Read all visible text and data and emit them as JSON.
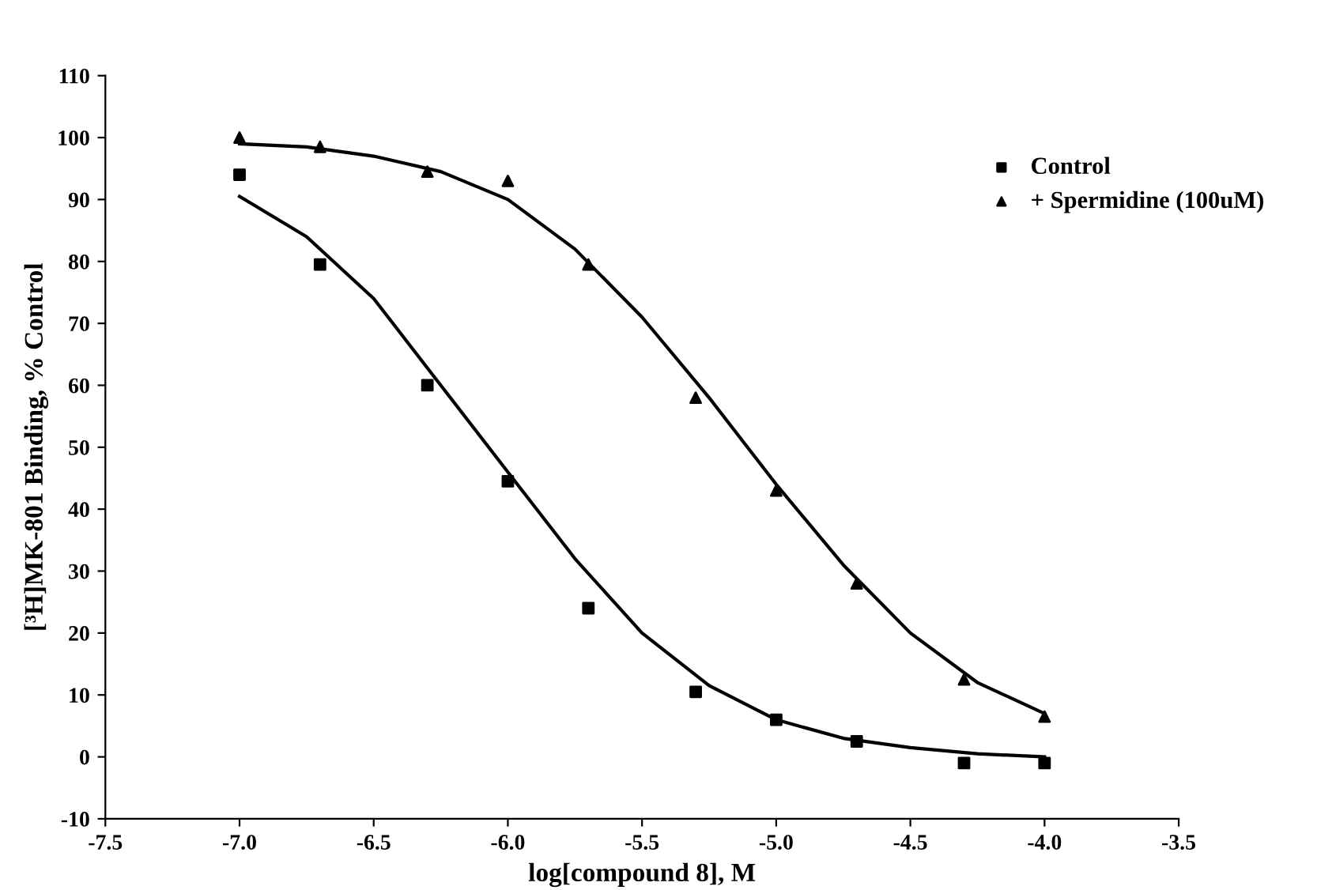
{
  "chart_data": {
    "type": "scatter",
    "xlabel": "log[compound 8], M",
    "ylabel": "[³H]MK-801 Binding, % Control",
    "xlim": [
      -7.5,
      -3.5
    ],
    "ylim": [
      -10,
      110
    ],
    "xticks": [
      -7.5,
      {
        "value": -7,
        "label": "-7.0"
      },
      -6.5,
      {
        "value": -6,
        "label": "-6.0"
      },
      -5.5,
      {
        "value": -5,
        "label": "-5.0"
      },
      -4.5,
      {
        "value": -4,
        "label": "-4.0"
      },
      -3.5
    ],
    "yticks": [
      -10,
      0,
      10,
      20,
      30,
      40,
      50,
      60,
      70,
      80,
      90,
      100,
      110
    ],
    "grid": false,
    "legend": "top right",
    "series": [
      {
        "name": "Control",
        "color": "#000000",
        "marker": "square",
        "x": [
          -7,
          -6.7,
          -6.3,
          -6,
          -5.7,
          -5.3,
          -5,
          -4.7,
          -4.3,
          -4
        ],
        "values": [
          94,
          79.5,
          60,
          44.5,
          24,
          10.5,
          6,
          2.5,
          -1,
          -1
        ]
      },
      {
        "name": "+ Spermidine (100uM)",
        "color": "#000000",
        "marker": "triangle",
        "x": [
          -7,
          -6.7,
          -6.3,
          -6,
          -5.7,
          -5.3,
          -5,
          -4.7,
          -4.3,
          -4
        ],
        "values": [
          100,
          98.5,
          94.5,
          93,
          79.5,
          58,
          43,
          28,
          12.5,
          6.5
        ]
      },
      {
        "type": "line",
        "color": "#000000",
        "marker": "none",
        "line_style": "solid",
        "x": [
          -7,
          -6.75,
          -6.5,
          -6.25,
          -6,
          -5.75,
          -5.5,
          -5.25,
          -5,
          -4.75,
          -4.5,
          -4.25,
          -4
        ],
        "values": [
          90.5,
          84,
          74,
          60,
          46,
          32,
          20,
          11.5,
          6,
          3,
          1.5,
          0.5,
          0
        ]
      },
      {
        "type": "line",
        "color": "#000000",
        "marker": "none",
        "line_style": "solid",
        "x": [
          -7,
          -6.75,
          -6.5,
          -6.25,
          -6,
          -5.75,
          -5.5,
          -5.25,
          -5,
          -4.75,
          -4.5,
          -4.25,
          -4
        ],
        "values": [
          99,
          98.5,
          97,
          94.5,
          90,
          82,
          71,
          58,
          44,
          31,
          20,
          12,
          7
        ]
      }
    ]
  }
}
